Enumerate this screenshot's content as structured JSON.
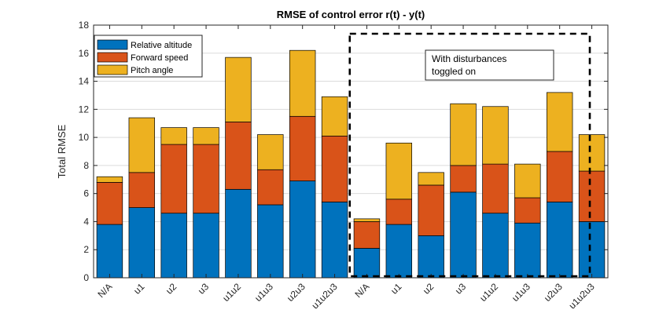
{
  "chart_data": {
    "type": "bar",
    "stacked": true,
    "title": "RMSE of control error r(t) - y(t)",
    "xlabel": "",
    "ylabel": "Total RMSE",
    "ylim": [
      0,
      18
    ],
    "yticks": [
      0,
      2,
      4,
      6,
      8,
      10,
      12,
      14,
      16,
      18
    ],
    "grid": true,
    "legend_position": "top-left",
    "categories": [
      "N/A",
      "u1",
      "u2",
      "u3",
      "u1u2",
      "u1u3",
      "u2u3",
      "u1u2u3",
      "N/A",
      "u1",
      "u2",
      "u3",
      "u1u2",
      "u1u3",
      "u2u3",
      "u1u2u3"
    ],
    "series": [
      {
        "name": "Relative altitude",
        "color": "#0072BD",
        "values": [
          3.8,
          5.0,
          4.6,
          4.6,
          6.3,
          5.2,
          6.9,
          5.4,
          2.1,
          3.8,
          3.0,
          6.1,
          4.6,
          3.9,
          5.4,
          4.0
        ]
      },
      {
        "name": "Forward speed",
        "color": "#D95319",
        "values": [
          3.0,
          2.5,
          4.9,
          4.9,
          4.8,
          2.5,
          4.6,
          4.7,
          1.9,
          1.8,
          3.6,
          1.9,
          3.5,
          1.8,
          3.6,
          3.6
        ]
      },
      {
        "name": "Pitch angle",
        "color": "#EDB120",
        "values": [
          0.4,
          3.9,
          1.2,
          1.2,
          4.6,
          2.5,
          4.7,
          2.8,
          0.2,
          4.0,
          0.9,
          4.4,
          4.1,
          2.4,
          4.2,
          2.6
        ]
      }
    ],
    "annotations": [
      {
        "text_lines": [
          "With disturbances",
          "toggled on"
        ],
        "region": "dashed box around categories 9-16"
      }
    ]
  }
}
